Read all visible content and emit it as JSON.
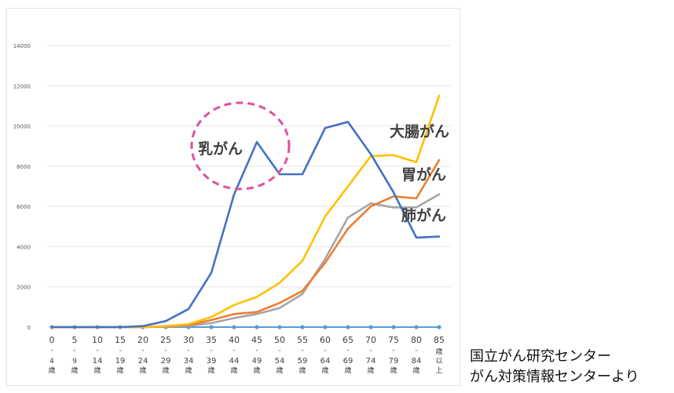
{
  "chart_data": {
    "type": "line",
    "categories": [
      "0-4歳",
      "5-9歳",
      "10-14歳",
      "15-19歳",
      "20-24歳",
      "25-29歳",
      "30-34歳",
      "35-39歳",
      "40-44歳",
      "45-49歳",
      "50-54歳",
      "55-59歳",
      "60-64歳",
      "65-69歳",
      "70-74歳",
      "75-79歳",
      "80-84歳",
      "85歳以上"
    ],
    "category_labels": [
      {
        "top": "0",
        "rest": [
          "-",
          "4",
          "歳"
        ]
      },
      {
        "top": "5",
        "rest": [
          "-",
          "9",
          "歳"
        ]
      },
      {
        "top": "10",
        "rest": [
          "-",
          "14",
          "歳"
        ]
      },
      {
        "top": "15",
        "rest": [
          "-",
          "19",
          "歳"
        ]
      },
      {
        "top": "20",
        "rest": [
          "-",
          "24",
          "歳"
        ]
      },
      {
        "top": "25",
        "rest": [
          "-",
          "29",
          "歳"
        ]
      },
      {
        "top": "30",
        "rest": [
          "-",
          "34",
          "歳"
        ]
      },
      {
        "top": "35",
        "rest": [
          "-",
          "39",
          "歳"
        ]
      },
      {
        "top": "40",
        "rest": [
          "-",
          "44",
          "歳"
        ]
      },
      {
        "top": "45",
        "rest": [
          "-",
          "49",
          "歳"
        ]
      },
      {
        "top": "50",
        "rest": [
          "-",
          "54",
          "歳"
        ]
      },
      {
        "top": "55",
        "rest": [
          "-",
          "59",
          "歳"
        ]
      },
      {
        "top": "60",
        "rest": [
          "-",
          "64",
          "歳"
        ]
      },
      {
        "top": "65",
        "rest": [
          "-",
          "69",
          "歳"
        ]
      },
      {
        "top": "70",
        "rest": [
          "-",
          "74",
          "歳"
        ]
      },
      {
        "top": "75",
        "rest": [
          "-",
          "79",
          "歳"
        ]
      },
      {
        "top": "80",
        "rest": [
          "-",
          "84",
          "歳"
        ]
      },
      {
        "top": "85",
        "rest": [
          "歳",
          "以",
          "上"
        ]
      }
    ],
    "yticks": [
      "0",
      "2000",
      "4000",
      "6000",
      "8000",
      "10000",
      "12000",
      "14000"
    ],
    "ylim": [
      0,
      14000
    ],
    "grid": true,
    "series": [
      {
        "name": "乳がん",
        "color": "#4472c4",
        "values": [
          0,
          0,
          0,
          0,
          50,
          300,
          900,
          2700,
          6600,
          9200,
          7600,
          7600,
          9900,
          10200,
          8600,
          6700,
          4450,
          4500
        ]
      },
      {
        "name": "大腸がん",
        "color": "#ffc000",
        "values": [
          0,
          0,
          0,
          0,
          0,
          50,
          150,
          500,
          1100,
          1500,
          2200,
          3300,
          5500,
          7000,
          8500,
          8550,
          8200,
          11500
        ]
      },
      {
        "name": "胃がん",
        "color": "#ed7d31",
        "values": [
          0,
          0,
          0,
          0,
          0,
          30,
          100,
          350,
          650,
          750,
          1200,
          1800,
          3200,
          4900,
          6000,
          6500,
          6400,
          8300
        ]
      },
      {
        "name": "肺がん",
        "color": "#a5a5a5",
        "values": [
          0,
          0,
          0,
          0,
          0,
          20,
          60,
          200,
          450,
          650,
          950,
          1650,
          3400,
          5450,
          6150,
          5950,
          5950,
          6600
        ]
      }
    ],
    "baseline_color": "#5b9bd5",
    "highlight": {
      "label": "乳がん",
      "shape": "dashed-circle",
      "color": "#e0509e"
    }
  },
  "source": {
    "line1": "国立がん研究センター",
    "line2": "がん対策情報センターより"
  }
}
